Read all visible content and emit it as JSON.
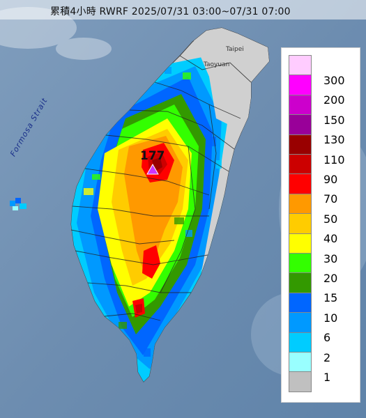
{
  "title": "累積4小時 RWRF 2025/07/31 03:00~07/31 07:00",
  "places": {
    "taipei": "Taipei",
    "taoyuan": "Taoyuan",
    "strait": "Formosa Strait"
  },
  "max_marker": {
    "value_label": "177",
    "icon": "triangle-max-icon"
  },
  "legend": {
    "unit_levels": [
      {
        "label": "300",
        "color": "#ffccff"
      },
      {
        "label": "200",
        "color": "#ff00ff"
      },
      {
        "label": "150",
        "color": "#cc00cc"
      },
      {
        "label": "130",
        "color": "#990099"
      },
      {
        "label": "110",
        "color": "#990000"
      },
      {
        "label": "90",
        "color": "#cc0000"
      },
      {
        "label": "70",
        "color": "#ff0000"
      },
      {
        "label": "50",
        "color": "#ff9900"
      },
      {
        "label": "40",
        "color": "#ffcc00"
      },
      {
        "label": "30",
        "color": "#ffff00"
      },
      {
        "label": "20",
        "color": "#33ff00"
      },
      {
        "label": "15",
        "color": "#339900"
      },
      {
        "label": "10",
        "color": "#0066ff"
      },
      {
        "label": "6",
        "color": "#0099ff"
      },
      {
        "label": "2",
        "color": "#00ccff"
      },
      {
        "label": "1",
        "color": "#99ffff"
      },
      {
        "label": "",
        "color": "#c0c0c0"
      }
    ]
  }
}
